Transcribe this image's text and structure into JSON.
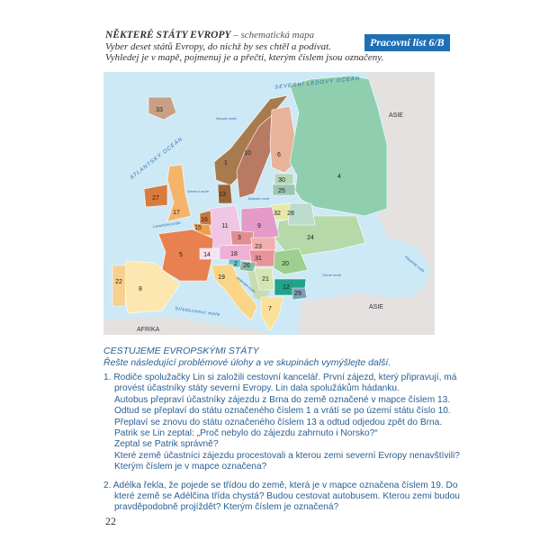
{
  "header": {
    "title": "NĚKTERÉ STÁTY EVROPY",
    "subtitle": " – schematická mapa",
    "line2": "Vyber deset států Evropy, do nichž by ses chtěl a podívat.",
    "line3": "Vyhledej je v mapě, pojmenuj je a přečti, kterým číslem jsou označeny.",
    "badge": "Pracovní list 6/B",
    "badge_color": "#1f6fb5"
  },
  "map": {
    "regions": {
      "asia_top": "ASIE",
      "asia_bottom": "ASIE",
      "africa": "AFRIKA"
    },
    "seas": {
      "arctic": "SEVERNÍ LEDOVÝ OCEÁN",
      "atlantic": "ATLANTSKÝ OCEÁN",
      "norwegian": "Norské moře",
      "north": "Severní moře",
      "baltic": "Baltské moře",
      "channel": "Lamanšský průliv",
      "adriatic": "Jaderské moře",
      "black": "Černé moře",
      "caspian": "Kaspické moře",
      "mediterranean": "Středozemní moře"
    },
    "countries": [
      {
        "number": "33",
        "color": "#c9a085"
      },
      {
        "number": "1",
        "color": "#a87b4e"
      },
      {
        "number": "10",
        "color": "#b97a63"
      },
      {
        "number": "6",
        "color": "#e8b39a"
      },
      {
        "number": "4",
        "color": "#8fcfb0"
      },
      {
        "number": "24",
        "color": "#b5d9a8"
      },
      {
        "number": "27",
        "color": "#d97a3e"
      },
      {
        "number": "17",
        "color": "#f5b46a"
      },
      {
        "number": "13",
        "color": "#9a6235"
      },
      {
        "number": "30",
        "color": "#b6d7b5"
      },
      {
        "number": "25",
        "color": "#9cc6b0"
      },
      {
        "number": "32",
        "color": "#e6e8a6"
      },
      {
        "number": "28",
        "color": "#bcdccb"
      },
      {
        "number": "9",
        "color": "#e39ac9"
      },
      {
        "number": "11",
        "color": "#efc6e3"
      },
      {
        "number": "16",
        "color": "#c9773f"
      },
      {
        "number": "15",
        "color": "#e9a24c"
      },
      {
        "number": "5",
        "color": "#e8804f"
      },
      {
        "number": "14",
        "color": "#f8e0ee"
      },
      {
        "number": "3",
        "color": "#e08f93"
      },
      {
        "number": "18",
        "color": "#eeb0d4"
      },
      {
        "number": "23",
        "color": "#f1b0ad"
      },
      {
        "number": "31",
        "color": "#e8929a"
      },
      {
        "number": "20",
        "color": "#9fcf90"
      },
      {
        "number": "2",
        "color": "#6cc0c8"
      },
      {
        "number": "26",
        "color": "#8ab9a6"
      },
      {
        "number": "21",
        "color": "#d6e4b3"
      },
      {
        "number": "12",
        "color": "#1fa38a"
      },
      {
        "number": "29",
        "color": "#7aa0b5"
      },
      {
        "number": "7",
        "color": "#fbe09a"
      },
      {
        "number": "19",
        "color": "#fbd587"
      },
      {
        "number": "8",
        "color": "#fde7b0"
      },
      {
        "number": "22",
        "color": "#f7cf8e"
      }
    ]
  },
  "section": {
    "title": "CESTUJEME EVROPSKÝMI STÁTY",
    "subtitle": "Řešte následující problémové úlohy a ve skupinách vymýšlejte další."
  },
  "tasks": [
    {
      "lines": [
        "1. Rodiče spolužačky Lin si založili cestovní kancelář. První zájezd, který připravují, má",
        "provést účastníky státy severní Evropy. Lin dala spolužákům hádanku.",
        "Autobus přepraví účastníky zájezdu z Brna do země označené v mapce číslem 13.",
        "Odtud se přeplaví do státu označeného číslem 1 a vrátí se po území státu číslo 10.",
        "Přeplaví se znovu do státu označeného číslem 13 a odtud odjedou zpět do Brna.",
        "Patrik se Lin zeptal: „Proč nebylo do zájezdu zahrnuto i Norsko?“",
        "Zeptal se Patrik správně?",
        "Které země účastníci zájezdu procestovali a kterou zemi severní Evropy nenavštívili?",
        "Kterým číslem je v mapce označena?"
      ]
    },
    {
      "lines": [
        "2. Adélka řekla, že pojede se třídou do země, která je v mapce označena číslem 19. Do",
        "které země se Adélčina třída chystá? Budou cestovat autobusem. Kterou zemi budou",
        "pravděpodobně projíždět? Kterým číslem je označená?"
      ]
    }
  ],
  "page_number": "22"
}
